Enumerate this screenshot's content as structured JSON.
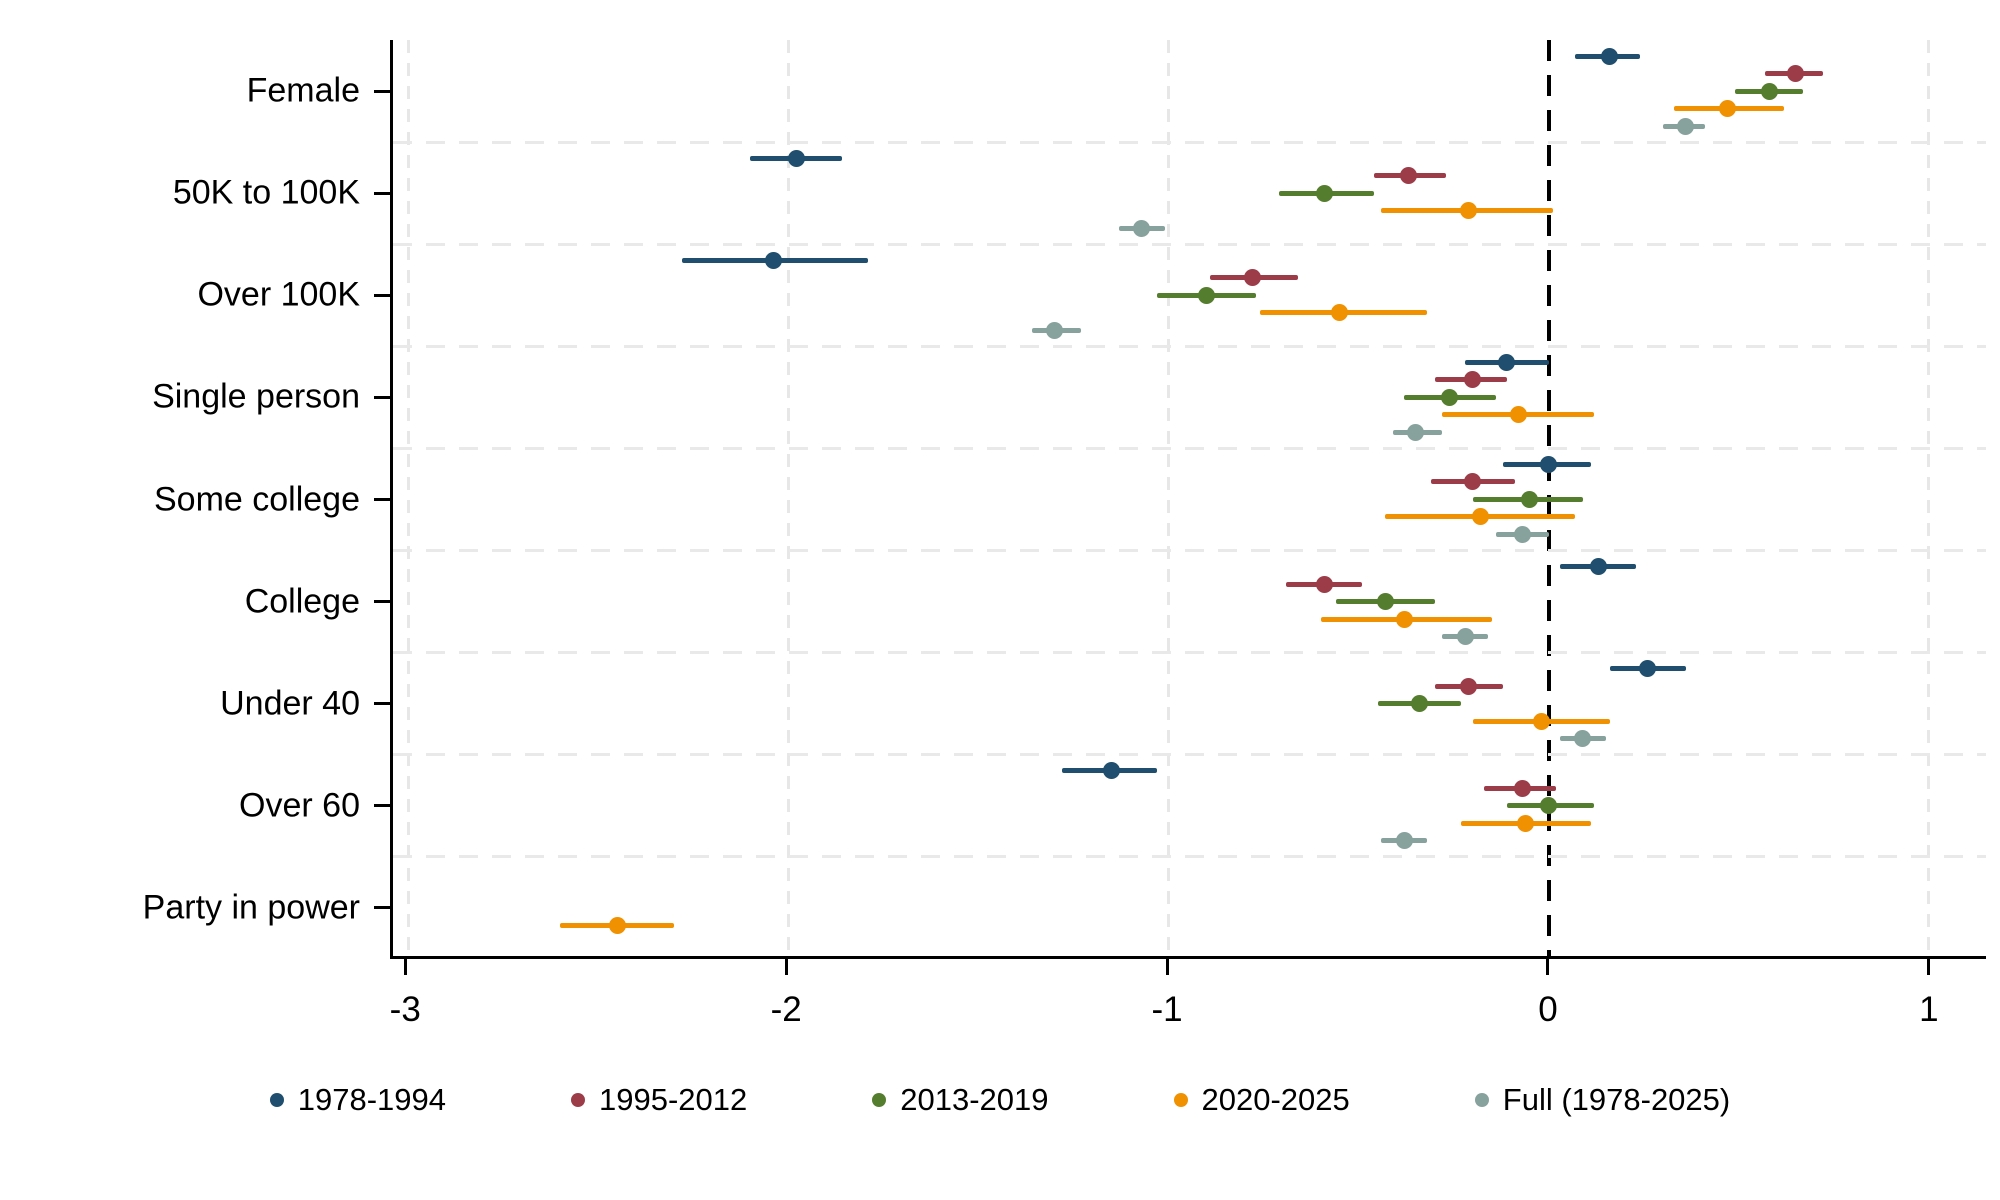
{
  "figure": {
    "background": "#ffffff",
    "text_color": "#000000",
    "gridline_color": "#e8e8e8",
    "axis_color": "#000000"
  },
  "chart_data": {
    "type": "scatter",
    "variant": "coefficient-dot-whisker",
    "orientation": "horizontal",
    "title": "",
    "xlabel": "",
    "ylabel": "",
    "grid": "light dashed vertical gridlines at ticks; light dashed horizontal separators between category rows",
    "categories": [
      "Female",
      "50K to 100K",
      "Over 100K",
      "Single person",
      "Some college",
      "College",
      "Under 40",
      "Over 60",
      "Party in power"
    ],
    "x_axis": {
      "xlim": [
        -3.04,
        1.15
      ],
      "ticks": [
        {
          "value": -3,
          "label": "-3"
        },
        {
          "value": -2,
          "label": "-2"
        },
        {
          "value": -1,
          "label": "-1"
        },
        {
          "value": 0,
          "label": "0"
        },
        {
          "value": 1,
          "label": "1"
        }
      ],
      "zero_line": {
        "value": 0,
        "color": "#000000",
        "style": "dashed"
      }
    },
    "legend": {
      "position": "bottom"
    },
    "series": [
      {
        "name": "1978-1994",
        "color": "#1f4e6e",
        "points": [
          {
            "est": 0.16,
            "lo": 0.07,
            "hi": 0.24
          },
          {
            "est": -1.98,
            "lo": -2.1,
            "hi": -1.86
          },
          {
            "est": -2.04,
            "lo": -2.28,
            "hi": -1.79
          },
          {
            "est": -0.11,
            "lo": -0.22,
            "hi": 0.0
          },
          {
            "est": 0.0,
            "lo": -0.12,
            "hi": 0.11
          },
          {
            "est": 0.13,
            "lo": 0.03,
            "hi": 0.23
          },
          {
            "est": 0.26,
            "lo": 0.16,
            "hi": 0.36
          },
          {
            "est": -1.15,
            "lo": -1.28,
            "hi": -1.03
          },
          null
        ]
      },
      {
        "name": "1995-2012",
        "color": "#9d3c49",
        "points": [
          {
            "est": 0.65,
            "lo": 0.57,
            "hi": 0.72
          },
          {
            "est": -0.37,
            "lo": -0.46,
            "hi": -0.27
          },
          {
            "est": -0.78,
            "lo": -0.89,
            "hi": -0.66
          },
          {
            "est": -0.2,
            "lo": -0.3,
            "hi": -0.11
          },
          {
            "est": -0.2,
            "lo": -0.31,
            "hi": -0.09
          },
          {
            "est": -0.59,
            "lo": -0.69,
            "hi": -0.49
          },
          {
            "est": -0.21,
            "lo": -0.3,
            "hi": -0.12
          },
          {
            "est": -0.07,
            "lo": -0.17,
            "hi": 0.02
          },
          null
        ]
      },
      {
        "name": "2013-2019",
        "color": "#557d2e",
        "points": [
          {
            "est": 0.58,
            "lo": 0.49,
            "hi": 0.67
          },
          {
            "est": -0.59,
            "lo": -0.71,
            "hi": -0.46
          },
          {
            "est": -0.9,
            "lo": -1.03,
            "hi": -0.77
          },
          {
            "est": -0.26,
            "lo": -0.38,
            "hi": -0.14
          },
          {
            "est": -0.05,
            "lo": -0.2,
            "hi": 0.09
          },
          {
            "est": -0.43,
            "lo": -0.56,
            "hi": -0.3
          },
          {
            "est": -0.34,
            "lo": -0.45,
            "hi": -0.23
          },
          {
            "est": 0.0,
            "lo": -0.11,
            "hi": 0.12
          },
          null
        ]
      },
      {
        "name": "2020-2025",
        "color": "#ef9100",
        "points": [
          {
            "est": 0.47,
            "lo": 0.33,
            "hi": 0.62
          },
          {
            "est": -0.21,
            "lo": -0.44,
            "hi": 0.01
          },
          {
            "est": -0.55,
            "lo": -0.76,
            "hi": -0.32
          },
          {
            "est": -0.08,
            "lo": -0.28,
            "hi": 0.12
          },
          {
            "est": -0.18,
            "lo": -0.43,
            "hi": 0.07
          },
          {
            "est": -0.38,
            "lo": -0.6,
            "hi": -0.15
          },
          {
            "est": -0.02,
            "lo": -0.2,
            "hi": 0.16
          },
          {
            "est": -0.06,
            "lo": -0.23,
            "hi": 0.11
          },
          {
            "est": -2.45,
            "lo": -2.6,
            "hi": -2.3
          }
        ]
      },
      {
        "name": "Full (1978-2025)",
        "color": "#87a29c",
        "points": [
          {
            "est": 0.36,
            "lo": 0.3,
            "hi": 0.41
          },
          {
            "est": -1.07,
            "lo": -1.13,
            "hi": -1.01
          },
          {
            "est": -1.3,
            "lo": -1.36,
            "hi": -1.23
          },
          {
            "est": -0.35,
            "lo": -0.41,
            "hi": -0.28
          },
          {
            "est": -0.07,
            "lo": -0.14,
            "hi": 0.0
          },
          {
            "est": -0.22,
            "lo": -0.28,
            "hi": -0.16
          },
          {
            "est": 0.09,
            "lo": 0.03,
            "hi": 0.15
          },
          {
            "est": -0.38,
            "lo": -0.44,
            "hi": -0.32
          },
          null
        ]
      }
    ]
  }
}
